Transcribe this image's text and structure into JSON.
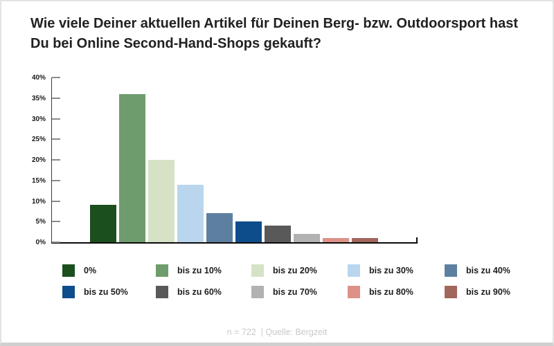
{
  "title": "Wie viele Deiner aktuellen Artikel für Deinen Berg- bzw. Outdoorsport hast Du bei Online Second-Hand-Shops gekauft?",
  "footer": "n = 722  | Quelle: Bergzeit",
  "chart_data": {
    "type": "bar",
    "title": "Wie viele Deiner aktuellen Artikel für Deinen Berg- bzw. Outdoorsport hast Du bei Online Second-Hand-Shops gekauft?",
    "categories": [
      "0%",
      "bis zu 10%",
      "bis zu 20%",
      "bis zu 30%",
      "bis zu 40%",
      "bis zu 50%",
      "bis zu 60%",
      "bis zu 70%",
      "bis zu 80%",
      "bis zu 90%"
    ],
    "values": [
      9,
      36,
      20,
      14,
      7,
      5,
      4,
      2,
      1,
      1
    ],
    "colors": [
      "#1b4f1e",
      "#6f9c6c",
      "#d5e2c6",
      "#b9d6ee",
      "#5d80a0",
      "#0e4d8c",
      "#595959",
      "#b2b2b2",
      "#dd9187",
      "#a2675c"
    ],
    "xlabel": "",
    "ylabel": "",
    "ylim": [
      0,
      40
    ],
    "ytick_step": 5,
    "ytick_suffix": "%",
    "grid": false,
    "legend_position": "bottom",
    "sample_note": "n = 722  | Quelle: Bergzeit"
  }
}
